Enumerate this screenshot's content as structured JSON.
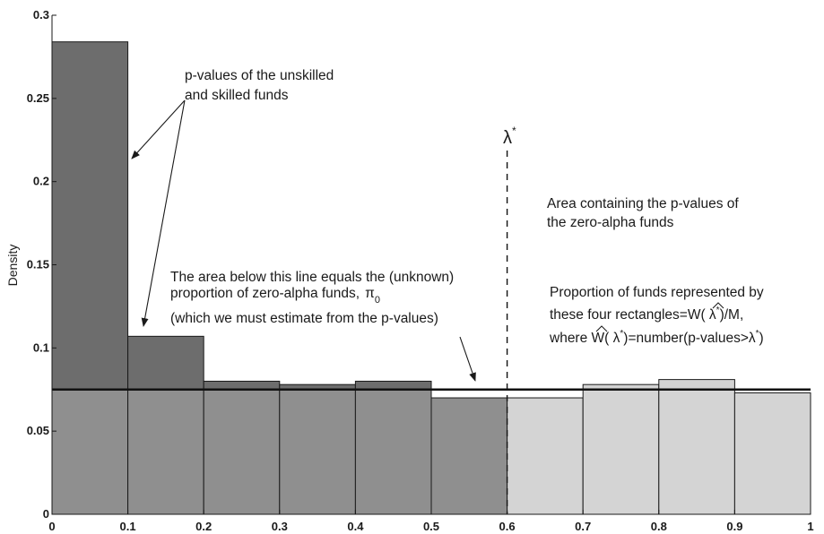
{
  "chart_data": {
    "type": "bar",
    "title": "",
    "xlabel": "",
    "ylabel": "Density",
    "xlim": [
      0,
      1
    ],
    "ylim": [
      0,
      0.3
    ],
    "x_ticks": [
      "0",
      "0.1",
      "0.2",
      "0.3",
      "0.4",
      "0.5",
      "0.6",
      "0.7",
      "0.8",
      "0.9",
      "1"
    ],
    "y_ticks": [
      "0",
      "0.05",
      "0.1",
      "0.15",
      "0.2",
      "0.25",
      "0.3"
    ],
    "bins": [
      {
        "x0": 0.0,
        "x1": 0.1,
        "value": 0.284
      },
      {
        "x0": 0.1,
        "x1": 0.2,
        "value": 0.107
      },
      {
        "x0": 0.2,
        "x1": 0.3,
        "value": 0.08
      },
      {
        "x0": 0.3,
        "x1": 0.4,
        "value": 0.078
      },
      {
        "x0": 0.4,
        "x1": 0.5,
        "value": 0.08
      },
      {
        "x0": 0.5,
        "x1": 0.6,
        "value": 0.07
      },
      {
        "x0": 0.6,
        "x1": 0.7,
        "value": 0.07
      },
      {
        "x0": 0.7,
        "x1": 0.8,
        "value": 0.078
      },
      {
        "x0": 0.8,
        "x1": 0.9,
        "value": 0.081
      },
      {
        "x0": 0.9,
        "x1": 1.0,
        "value": 0.073
      }
    ],
    "pi0_level": 0.075,
    "lambda_star": 0.6,
    "lambda_label": "λ",
    "lambda_label_sup": "*",
    "colors": {
      "upper_dark": "#6d6d6d",
      "lower_mid": "#8f8f8f",
      "right_light": "#d4d4d4",
      "edge": "#1a1a1a",
      "line": "#111111"
    },
    "annotations": {
      "skilled_line1": "p-values of the unskilled",
      "skilled_line2": "and skilled funds",
      "area_below_line1": "The area below this line equals the (unknown)",
      "area_below_line2_prefix": "proportion of zero-alpha funds,",
      "pi_symbol": "π",
      "pi_subscript": "0",
      "area_below_line3": "(which we must estimate from the p-values)",
      "zero_alpha_line1": "Area containing the p-values of",
      "zero_alpha_line2": "the zero-alpha funds",
      "prop_line1": "Proportion of funds represented by",
      "prop_line2_prefix": "these four rectangles=",
      "prop_line2_W": "W",
      "prop_line2_open": "( ",
      "prop_line2_lambda": "λ",
      "prop_line2_star": "*",
      "prop_line2_suffix": ")/M,",
      "prop_line3_prefix": "where ",
      "prop_line3_W": "W",
      "prop_line3_open": "( ",
      "prop_line3_lambda": "λ",
      "prop_line3_star": "*",
      "prop_line3_mid": ")=number(p-values>",
      "prop_line3_lambda2": "λ",
      "prop_line3_star2": "*",
      "prop_line3_close": ")"
    }
  }
}
